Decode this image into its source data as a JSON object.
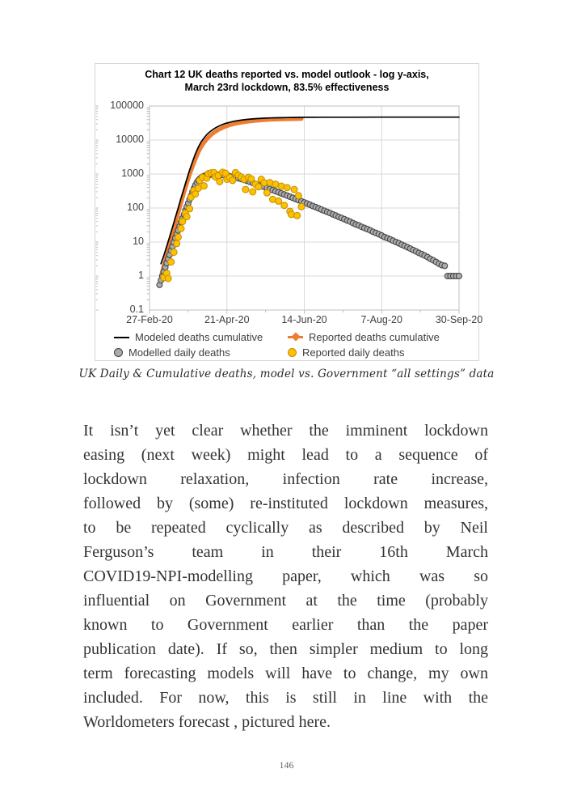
{
  "page": {
    "number": "146"
  },
  "caption": "UK Daily & Cumulative deaths, model vs. Government “all settings” data",
  "body": {
    "lines": [
      "It isn’t yet clear whether the imminent lockdown",
      "easing (next week) might lead to a sequence of",
      "lockdown relaxation, infection rate increase,",
      "followed by (some) re-instituted lockdown measures,",
      "to be repeated cyclically as described by Neil",
      "Ferguson’s team in their 16th March",
      "COVID19-NPI-modelling paper, which was so",
      "influential on Government at the time (probably",
      "known to Government earlier than the paper",
      "publication date). If so, then simpler medium to long",
      "term forecasting models will have to change, my own",
      "included. For now, this is still in line with the",
      "Worldometers forecast , pictured here."
    ]
  },
  "chart_data": {
    "type": "line+scatter",
    "title_line1": "Chart 12 UK deaths reported vs. model outlook - log y-axis,",
    "title_line2": "March 23rd lockdown, 83.5% effectiveness",
    "y_scale": "log10",
    "ylim": [
      0.1,
      100000
    ],
    "y_ticks": [
      "100000",
      "10000",
      "1000",
      "100",
      "10",
      "1",
      "0.1"
    ],
    "x_ticks": [
      "27-Feb-20",
      "21-Apr-20",
      "14-Jun-20",
      "7-Aug-20",
      "30-Sep-20"
    ],
    "x_tick_days": [
      0,
      54,
      108,
      162,
      216
    ],
    "grid_color": "#d9d9d9",
    "axis_color": "#bfbfbf",
    "legend": [
      {
        "label": "Modeled deaths cumulative",
        "marker": "line",
        "color": "#000000"
      },
      {
        "label": "Reported deaths cumulative",
        "marker": "line-diamond",
        "color": "#ED7D31"
      },
      {
        "label": "Modelled daily deaths",
        "marker": "circle",
        "color": "#ABABAB",
        "stroke": "#404040"
      },
      {
        "label": "Reported daily deaths",
        "marker": "circle",
        "color": "#FFC000",
        "stroke": "#BF8F00"
      }
    ],
    "series": [
      {
        "name": "Reported deaths cumulative",
        "type": "line",
        "color": "#ED7D31",
        "width": 5,
        "points": [
          [
            8,
            1
          ],
          [
            10,
            2
          ],
          [
            12,
            4
          ],
          [
            14,
            8
          ],
          [
            16,
            16
          ],
          [
            18,
            35
          ],
          [
            20,
            72
          ],
          [
            22,
            140
          ],
          [
            24,
            280
          ],
          [
            26,
            520
          ],
          [
            28,
            950
          ],
          [
            30,
            1650
          ],
          [
            32,
            2700
          ],
          [
            34,
            4300
          ],
          [
            36,
            6200
          ],
          [
            38,
            8300
          ],
          [
            40,
            10600
          ],
          [
            42,
            13000
          ],
          [
            44,
            15400
          ],
          [
            46,
            17700
          ],
          [
            48,
            19900
          ],
          [
            50,
            22000
          ],
          [
            52,
            24000
          ],
          [
            54,
            25800
          ],
          [
            56,
            27500
          ],
          [
            58,
            29000
          ],
          [
            60,
            30400
          ],
          [
            64,
            32800
          ],
          [
            68,
            34800
          ],
          [
            72,
            36400
          ],
          [
            76,
            37800
          ],
          [
            80,
            38900
          ],
          [
            84,
            39800
          ],
          [
            88,
            40500
          ],
          [
            92,
            41000
          ],
          [
            96,
            41400
          ],
          [
            100,
            41700
          ],
          [
            103,
            41900
          ],
          [
            106,
            42000
          ]
        ]
      },
      {
        "name": "Modeled deaths cumulative",
        "type": "line",
        "color": "#000000",
        "width": 1.7,
        "points": [
          [
            8,
            2.3
          ],
          [
            10,
            4
          ],
          [
            12,
            7.5
          ],
          [
            14,
            14
          ],
          [
            16,
            27
          ],
          [
            18,
            52
          ],
          [
            20,
            100
          ],
          [
            22,
            195
          ],
          [
            24,
            370
          ],
          [
            26,
            700
          ],
          [
            28,
            1300
          ],
          [
            30,
            2300
          ],
          [
            32,
            3900
          ],
          [
            34,
            6100
          ],
          [
            36,
            8700
          ],
          [
            38,
            11500
          ],
          [
            40,
            14400
          ],
          [
            42,
            17300
          ],
          [
            44,
            20100
          ],
          [
            46,
            22800
          ],
          [
            48,
            25300
          ],
          [
            50,
            27600
          ],
          [
            52,
            29700
          ],
          [
            54,
            31600
          ],
          [
            56,
            33300
          ],
          [
            58,
            34900
          ],
          [
            60,
            36300
          ],
          [
            64,
            38600
          ],
          [
            68,
            40400
          ],
          [
            72,
            41900
          ],
          [
            76,
            43000
          ],
          [
            80,
            43900
          ],
          [
            84,
            44600
          ],
          [
            88,
            45100
          ],
          [
            92,
            45500
          ],
          [
            96,
            45800
          ],
          [
            100,
            46100
          ],
          [
            110,
            46600
          ],
          [
            120,
            46850
          ],
          [
            140,
            47050
          ],
          [
            160,
            47150
          ],
          [
            190,
            47200
          ],
          [
            216,
            47250
          ]
        ]
      },
      {
        "name": "Modelled daily deaths",
        "type": "scatter",
        "fill": "#ABABAB",
        "stroke": "#3f3f3f",
        "r": 3.5,
        "points": [
          [
            7,
            0.55
          ],
          [
            8,
            0.75
          ],
          [
            9,
            1.0
          ],
          [
            10,
            1.35
          ],
          [
            11,
            1.8
          ],
          [
            12,
            2.4
          ],
          [
            13,
            3.2
          ],
          [
            14,
            4.2
          ],
          [
            15,
            5.6
          ],
          [
            16,
            7.4
          ],
          [
            17,
            9.8
          ],
          [
            18,
            13
          ],
          [
            19,
            17
          ],
          [
            20,
            22
          ],
          [
            21,
            29
          ],
          [
            22,
            38
          ],
          [
            23,
            50
          ],
          [
            24,
            65
          ],
          [
            25,
            85
          ],
          [
            26,
            110
          ],
          [
            27,
            140
          ],
          [
            28,
            180
          ],
          [
            29,
            230
          ],
          [
            30,
            300
          ],
          [
            31,
            380
          ],
          [
            32,
            470
          ],
          [
            33,
            560
          ],
          [
            34,
            650
          ],
          [
            35,
            720
          ],
          [
            36,
            780
          ],
          [
            37,
            830
          ],
          [
            38,
            870
          ],
          [
            39,
            900
          ],
          [
            40,
            920
          ],
          [
            42,
            940
          ],
          [
            44,
            950
          ],
          [
            46,
            955
          ],
          [
            48,
            950
          ],
          [
            50,
            940
          ],
          [
            52,
            920
          ],
          [
            54,
            895
          ],
          [
            56,
            865
          ],
          [
            58,
            830
          ],
          [
            60,
            790
          ],
          [
            62,
            750
          ],
          [
            64,
            710
          ],
          [
            66,
            670
          ],
          [
            68,
            630
          ],
          [
            70,
            590
          ],
          [
            72,
            550
          ],
          [
            74,
            515
          ],
          [
            76,
            480
          ],
          [
            78,
            448
          ],
          [
            80,
            418
          ],
          [
            82,
            390
          ],
          [
            84,
            362
          ],
          [
            86,
            337
          ],
          [
            88,
            313
          ],
          [
            90,
            291
          ],
          [
            92,
            270
          ],
          [
            94,
            250
          ],
          [
            96,
            232
          ],
          [
            98,
            215
          ],
          [
            100,
            199
          ],
          [
            102,
            184
          ],
          [
            104,
            170
          ],
          [
            106,
            158
          ],
          [
            108,
            146
          ],
          [
            110,
            135
          ],
          [
            112,
            125
          ],
          [
            114,
            115
          ],
          [
            116,
            106
          ],
          [
            118,
            98
          ],
          [
            120,
            90
          ],
          [
            122,
            83
          ],
          [
            124,
            77
          ],
          [
            126,
            71
          ],
          [
            128,
            65
          ],
          [
            130,
            60
          ],
          [
            132,
            55
          ],
          [
            134,
            51
          ],
          [
            136,
            47
          ],
          [
            138,
            43
          ],
          [
            140,
            40
          ],
          [
            142,
            36
          ],
          [
            144,
            33
          ],
          [
            146,
            31
          ],
          [
            148,
            28
          ],
          [
            150,
            26
          ],
          [
            152,
            24
          ],
          [
            154,
            22
          ],
          [
            156,
            20
          ],
          [
            158,
            18.5
          ],
          [
            160,
            17
          ],
          [
            162,
            15.5
          ],
          [
            164,
            14
          ],
          [
            166,
            13
          ],
          [
            168,
            12
          ],
          [
            170,
            11
          ],
          [
            172,
            10
          ],
          [
            174,
            9.2
          ],
          [
            176,
            8.4
          ],
          [
            178,
            7.7
          ],
          [
            180,
            7
          ],
          [
            182,
            6.4
          ],
          [
            184,
            5.8
          ],
          [
            186,
            5.3
          ],
          [
            188,
            4.8
          ],
          [
            190,
            4.4
          ],
          [
            192,
            4
          ],
          [
            194,
            3.6
          ],
          [
            196,
            3.2
          ],
          [
            198,
            2.9
          ],
          [
            200,
            2.6
          ],
          [
            202,
            2.3
          ],
          [
            204,
            2.1
          ],
          [
            206,
            2
          ],
          [
            208,
            1
          ],
          [
            210,
            1
          ],
          [
            212,
            1
          ],
          [
            214,
            1
          ],
          [
            216,
            1
          ]
        ]
      },
      {
        "name": "Reported daily deaths",
        "type": "scatter",
        "fill": "#FFC000",
        "stroke": "#BF8F00",
        "r": 4,
        "points": [
          [
            10,
            0.9
          ],
          [
            12,
            1.2
          ],
          [
            13,
            0.85
          ],
          [
            15,
            2.6
          ],
          [
            17,
            5
          ],
          [
            19,
            9
          ],
          [
            20,
            14
          ],
          [
            22,
            25
          ],
          [
            23,
            40
          ],
          [
            25,
            70
          ],
          [
            26,
            56
          ],
          [
            28,
            95
          ],
          [
            29,
            210
          ],
          [
            31,
            330
          ],
          [
            32,
            260
          ],
          [
            34,
            380
          ],
          [
            35,
            650
          ],
          [
            37,
            800
          ],
          [
            38,
            450
          ],
          [
            40,
            760
          ],
          [
            41,
            1020
          ],
          [
            43,
            1080
          ],
          [
            45,
            1100
          ],
          [
            46,
            820
          ],
          [
            48,
            900
          ],
          [
            49,
            600
          ],
          [
            51,
            1120
          ],
          [
            53,
            1050
          ],
          [
            54,
            700
          ],
          [
            56,
            800
          ],
          [
            58,
            650
          ],
          [
            60,
            1100
          ],
          [
            62,
            920
          ],
          [
            64,
            810
          ],
          [
            66,
            700
          ],
          [
            67,
            350
          ],
          [
            69,
            800
          ],
          [
            71,
            720
          ],
          [
            72,
            300
          ],
          [
            74,
            500
          ],
          [
            76,
            420
          ],
          [
            78,
            700
          ],
          [
            80,
            550
          ],
          [
            82,
            280
          ],
          [
            84,
            560
          ],
          [
            86,
            180
          ],
          [
            88,
            500
          ],
          [
            90,
            160
          ],
          [
            92,
            440
          ],
          [
            94,
            120
          ],
          [
            96,
            400
          ],
          [
            98,
            80
          ],
          [
            99,
            65
          ],
          [
            101,
            350
          ],
          [
            103,
            60
          ],
          [
            104,
            230
          ],
          [
            106,
            110
          ]
        ]
      }
    ]
  }
}
